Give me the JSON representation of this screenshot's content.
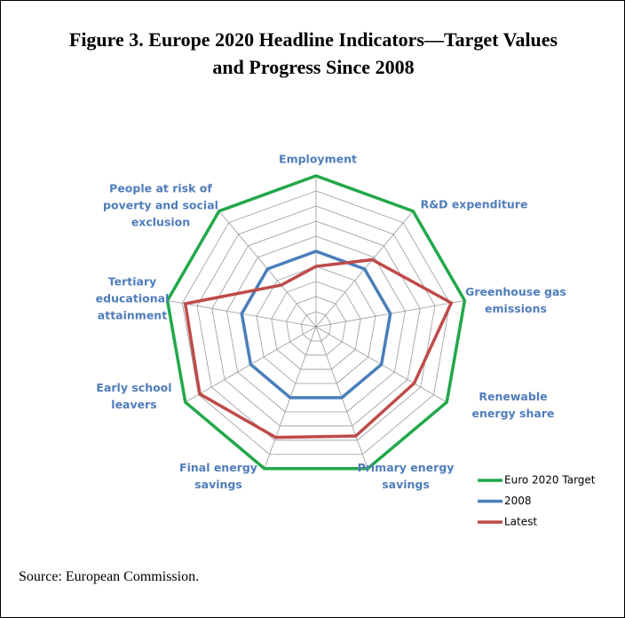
{
  "chart_data": {
    "type": "radar",
    "title": "Figure 3. Europe 2020 Headline Indicators—Target Values and Progress Since 2008",
    "source": "Source: European Commission.",
    "categories": [
      "Employment",
      "R&D expenditure",
      "Greenhouse gas emissions",
      "Renewable energy share",
      "Primary energy savings",
      "Final energy savings",
      "Early school leavers",
      "Tertiary educational attainment",
      "People at risk of poverty and social exclusion"
    ],
    "series": [
      {
        "name": "Euro 2020 Target",
        "color": "#22a84a",
        "values": [
          100,
          100,
          100,
          100,
          100,
          100,
          100,
          100,
          100
        ]
      },
      {
        "name": "2008",
        "color": "#4a7ebb",
        "values": [
          50,
          50,
          50,
          50,
          50,
          50,
          50,
          50,
          50
        ]
      },
      {
        "name": "Latest",
        "color": "#be4b48",
        "values": [
          40,
          58,
          91,
          75,
          77,
          78,
          89,
          88,
          36
        ]
      }
    ],
    "rlim": [
      0,
      100
    ],
    "rticks": [
      10,
      20,
      30,
      40,
      50,
      60,
      70,
      80,
      90,
      100
    ],
    "grid": true
  }
}
